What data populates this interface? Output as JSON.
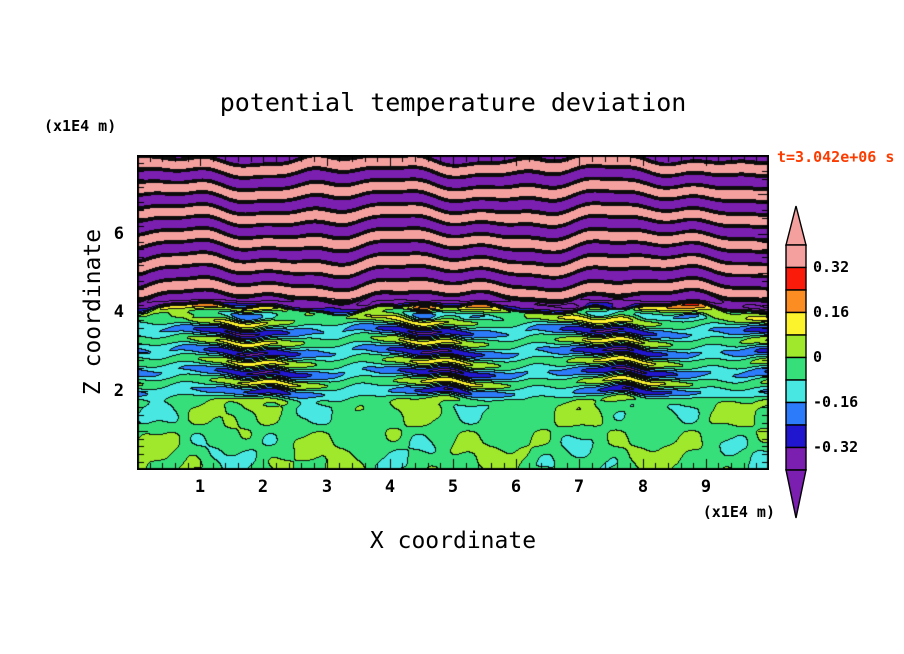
{
  "title": "potential temperature deviation",
  "timestamp": "t=3.042e+06 s",
  "timestamp_color": "#fb3c00",
  "axes": {
    "x_label": "X coordinate",
    "x_units": "(x1E4 m)",
    "x_ticks": [
      "1",
      "2",
      "3",
      "4",
      "5",
      "6",
      "7",
      "8",
      "9"
    ],
    "y_label": "Z coordinate",
    "y_units": "(x1E4 m)",
    "y_ticks": [
      "2",
      "4",
      "6"
    ]
  },
  "colorbar": {
    "labels": [
      {
        "text": "0.32"
      },
      {
        "text": "0.16"
      },
      {
        "text": "0"
      },
      {
        "text": "-0.16"
      },
      {
        "text": "-0.32"
      }
    ],
    "bands": [
      {
        "range": "> 0.40",
        "color": "#f4a09e"
      },
      {
        "range": "0.32 to 0.40",
        "color": "#f4a09e"
      },
      {
        "range": "0.24 to 0.32",
        "color": "#fa1b0a"
      },
      {
        "range": "0.16 to 0.24",
        "color": "#fb8d22"
      },
      {
        "range": "0.08 to 0.16",
        "color": "#fcf32d"
      },
      {
        "range": "0.00 to 0.08",
        "color": "#9fe82c"
      },
      {
        "range": "-0.08 to 0.00",
        "color": "#36df7a"
      },
      {
        "range": "-0.16 to -0.08",
        "color": "#48e7e1"
      },
      {
        "range": "-0.24 to -0.16",
        "color": "#2b7bfa"
      },
      {
        "range": "-0.32 to -0.24",
        "color": "#2116cf"
      },
      {
        "range": "-0.40 to -0.32",
        "color": "#7a1fb0"
      },
      {
        "range": "< -0.40",
        "color": "#7a1fb0"
      }
    ]
  },
  "chart_data": {
    "type": "heatmap",
    "title": "potential temperature deviation",
    "xlabel": "X coordinate",
    "ylabel": "Z coordinate",
    "x_units": "x1E4 m",
    "y_units": "x1E4 m",
    "x_range": [
      0,
      10
    ],
    "y_range": [
      0,
      8
    ],
    "x_tick_values": [
      1,
      2,
      3,
      4,
      5,
      6,
      7,
      8,
      9
    ],
    "y_tick_values": [
      2,
      4,
      6
    ],
    "time_annotation": "t=3.042e+06 s",
    "contour_interval": 0.08,
    "levels": [
      0.4,
      0.32,
      0.24,
      0.16,
      0.08,
      0,
      -0.08,
      -0.16,
      -0.24,
      -0.32,
      -0.4
    ],
    "palette": [
      "#f4a09e",
      "#f4a09e",
      "#fa1b0a",
      "#fb8d22",
      "#fcf32d",
      "#9fe82c",
      "#36df7a",
      "#48e7e1",
      "#2b7bfa",
      "#2116cf",
      "#7a1fb0",
      "#7a1fb0"
    ],
    "colorbar_tick_labels": [
      "0.32",
      "0.16",
      "0",
      "-0.16",
      "-0.32"
    ],
    "field_description": "Vertical cross-section of potential temperature deviation. Below z~2e4 m: weak near-zero deviations (spring-green background with yellow-green blobs, occasional cyan). From z~2-4e4 m: cyan background (~-0.1) crossed by thin wavy stripes of green/yellow and blue/navy with sparse red streaks. Above z~4.5e4 m: large-amplitude wave bands alternating between strong positive (salmon, >0.4) and strong negative (purple, <-0.4), separated by thin red/orange/yellow and blue/navy contour fringes.",
    "approx_field": {
      "x_max": 10,
      "z_max": 8,
      "bottom_mean": -0.028,
      "bottom_top_z": 1.55,
      "mid_start_z": 2.1,
      "mid_end_z": 3.7,
      "top_start_z": 4.6,
      "mid_mean": -0.105,
      "mid_amp": 0.14,
      "mid_amp_var": 0.09,
      "mid_wavelength": 0.52,
      "top_amp": 0.56,
      "top_wavelength": 0.63,
      "top_shape": 2.6
    }
  }
}
